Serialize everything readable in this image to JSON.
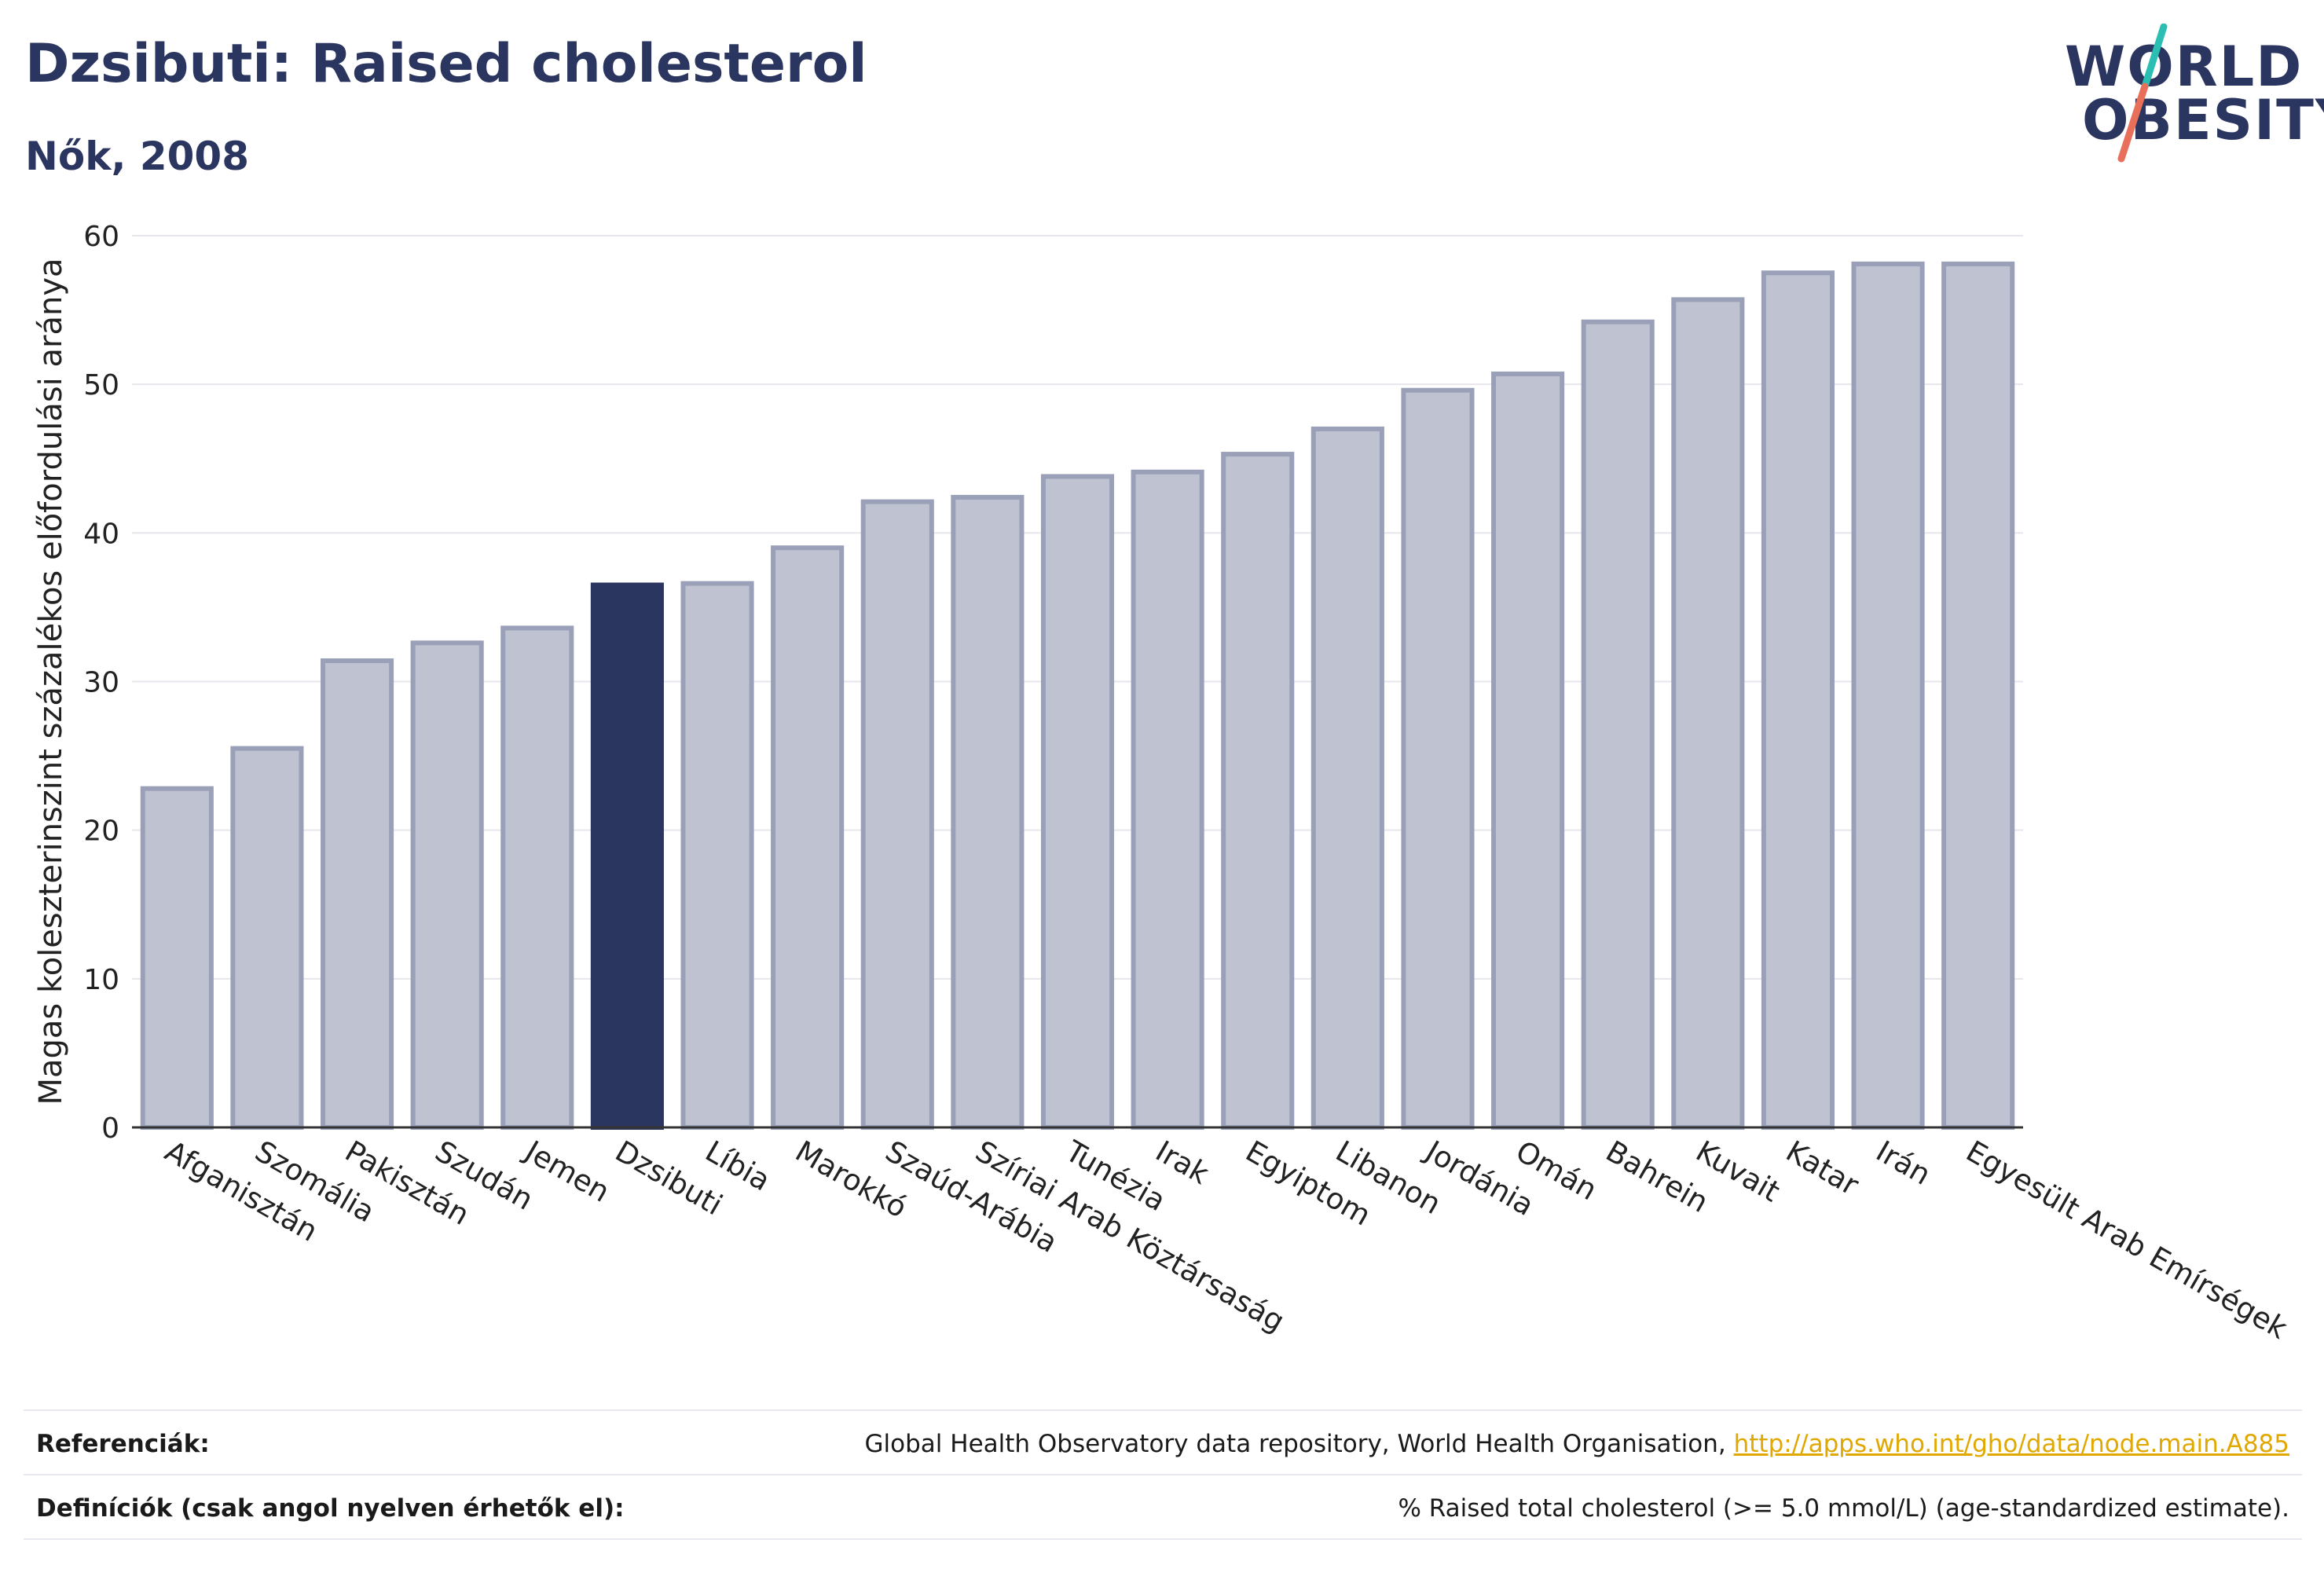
{
  "header": {
    "title": "Dzsibuti: Raised cholesterol",
    "subtitle": "Nők, 2008"
  },
  "logo": {
    "line1": "WORLD",
    "line2": "OBESITY",
    "colors": {
      "text": "#2b3660",
      "slash_top": "#2bbfb3",
      "slash_bottom": "#e8705a"
    }
  },
  "chart_data": {
    "type": "bar",
    "ylabel": "Magas koleszterinszint százalékos előfordulási aránya",
    "xlabel": "",
    "ylim": [
      0,
      60
    ],
    "yticks": [
      0,
      10,
      20,
      30,
      40,
      50,
      60
    ],
    "grid": true,
    "highlight": "Dzsibuti",
    "colors": {
      "bar": "#bfc3d1",
      "bar_edge": "#9aa0b8",
      "highlight": "#2b3660",
      "grid": "#e6e6ec",
      "axis": "#333333"
    },
    "categories": [
      "Afganisztán",
      "Szomália",
      "Pakisztán",
      "Szudán",
      "Jemen",
      "Dzsibuti",
      "Líbia",
      "Marokkó",
      "Szaúd-Arábia",
      "Szíriai Arab Köztársaság",
      "Tunézia",
      "Irak",
      "Egyiptom",
      "Libanon",
      "Jordánia",
      "Omán",
      "Bahrein",
      "Kuvait",
      "Katar",
      "Irán",
      "Egyesült Arab Emírségek"
    ],
    "values": [
      22.8,
      25.5,
      31.4,
      32.6,
      33.6,
      36.5,
      36.6,
      39.0,
      42.1,
      42.4,
      43.8,
      44.1,
      45.3,
      47.0,
      49.6,
      50.7,
      54.2,
      55.7,
      57.5,
      58.1,
      58.1
    ]
  },
  "footer": {
    "references_label": "Referenciák:",
    "references_text": "Global Health Observatory data repository, World Health Organisation,",
    "references_link": "http://apps.who.int/gho/data/node.main.A885",
    "definitions_label": "Definíciók (csak angol nyelven érhetők el):",
    "definitions_text": "% Raised total cholesterol (>= 5.0 mmol/L) (age-standardized estimate)."
  }
}
